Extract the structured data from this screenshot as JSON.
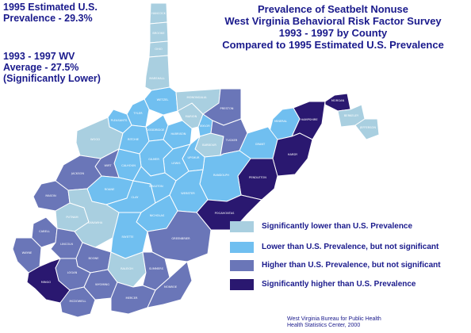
{
  "title": {
    "line1": "Prevalence of Seatbelt Nonuse",
    "line2": "West Virginia Behavioral Risk Factor Survey",
    "line3": "1993 - 1997 by County",
    "line4": "Compared to 1995 Estimated U.S. Prevalence"
  },
  "us_estimate": {
    "line1": "1995 Estimated U.S.",
    "line2": "Prevalence - 29.3%"
  },
  "wv_average": {
    "line1": "1993 - 1997 WV",
    "line2": "Average - 27.5%",
    "line3": "(Significantly Lower)"
  },
  "legend": [
    {
      "label": "Significantly lower than U.S. Prevalence",
      "color": "#a9cfe0"
    },
    {
      "label": "Lower than U.S. Prevalence, but not significant",
      "color": "#70bff0"
    },
    {
      "label": "Higher than U.S. Prevalence, but not significant",
      "color": "#6a76b8"
    },
    {
      "label": "Significantly higher than U.S. Prevalence",
      "color": "#2a1870"
    }
  ],
  "credit": {
    "line1": "West Virginia Bureau for Public Health",
    "line2": "Health Statistics Center, 2000"
  },
  "colors": {
    "sig_lower": "#a9cfe0",
    "lower": "#70bff0",
    "higher": "#6a76b8",
    "sig_higher": "#2a1870",
    "border": "#ffffff",
    "text": "#1a1a8c"
  },
  "counties": [
    {
      "name": "HANCOCK",
      "category": "sig_lower"
    },
    {
      "name": "BROOKE",
      "category": "sig_lower"
    },
    {
      "name": "OHIO",
      "category": "sig_lower"
    },
    {
      "name": "MARSHALL",
      "category": "sig_lower"
    },
    {
      "name": "WETZEL",
      "category": "lower"
    },
    {
      "name": "TYLER",
      "category": "lower"
    },
    {
      "name": "PLEASANTS",
      "category": "lower"
    },
    {
      "name": "WOOD",
      "category": "sig_lower"
    },
    {
      "name": "RITCHIE",
      "category": "lower"
    },
    {
      "name": "DODDRIDGE",
      "category": "lower"
    },
    {
      "name": "HARRISON",
      "category": "lower"
    },
    {
      "name": "MARION",
      "category": "sig_lower"
    },
    {
      "name": "MONONGALIA",
      "category": "sig_lower"
    },
    {
      "name": "PRESTON",
      "category": "higher"
    },
    {
      "name": "TAYLOR",
      "category": "lower"
    },
    {
      "name": "BARBOUR",
      "category": "sig_lower"
    },
    {
      "name": "TUCKER",
      "category": "higher"
    },
    {
      "name": "MINERAL",
      "category": "lower"
    },
    {
      "name": "GRANT",
      "category": "lower"
    },
    {
      "name": "HAMPSHIRE",
      "category": "sig_higher"
    },
    {
      "name": "MORGAN",
      "category": "sig_higher"
    },
    {
      "name": "BERKELEY",
      "category": "sig_lower"
    },
    {
      "name": "JEFFERSON",
      "category": "sig_lower"
    },
    {
      "name": "HARDY",
      "category": "sig_higher"
    },
    {
      "name": "PENDLETON",
      "category": "sig_higher"
    },
    {
      "name": "RANDOLPH",
      "category": "lower"
    },
    {
      "name": "UPSHUR",
      "category": "lower"
    },
    {
      "name": "LEWIS",
      "category": "lower"
    },
    {
      "name": "GILMER",
      "category": "lower"
    },
    {
      "name": "CALHOUN",
      "category": "lower"
    },
    {
      "name": "WIRT",
      "category": "higher"
    },
    {
      "name": "JACKSON",
      "category": "higher"
    },
    {
      "name": "ROANE",
      "category": "lower"
    },
    {
      "name": "MASON",
      "category": "higher"
    },
    {
      "name": "PUTNAM",
      "category": "sig_lower"
    },
    {
      "name": "KANAWHA",
      "category": "sig_lower"
    },
    {
      "name": "CLAY",
      "category": "lower"
    },
    {
      "name": "BRAXTON",
      "category": "lower"
    },
    {
      "name": "WEBSTER",
      "category": "lower"
    },
    {
      "name": "POCAHONTAS",
      "category": "sig_higher"
    },
    {
      "name": "NICHOLAS",
      "category": "lower"
    },
    {
      "name": "FAYETTE",
      "category": "lower"
    },
    {
      "name": "GREENBRIER",
      "category": "higher"
    },
    {
      "name": "CABELL",
      "category": "higher"
    },
    {
      "name": "WAYNE",
      "category": "higher"
    },
    {
      "name": "LINCOLN",
      "category": "higher"
    },
    {
      "name": "BOONE",
      "category": "higher"
    },
    {
      "name": "LOGAN",
      "category": "higher"
    },
    {
      "name": "MINGO",
      "category": "sig_higher"
    },
    {
      "name": "MCDOWELL",
      "category": "higher"
    },
    {
      "name": "WYOMING",
      "category": "higher"
    },
    {
      "name": "RALEIGH",
      "category": "sig_lower"
    },
    {
      "name": "SUMMERS",
      "category": "higher"
    },
    {
      "name": "MERCER",
      "category": "higher"
    },
    {
      "name": "MONROE",
      "category": "higher"
    }
  ]
}
